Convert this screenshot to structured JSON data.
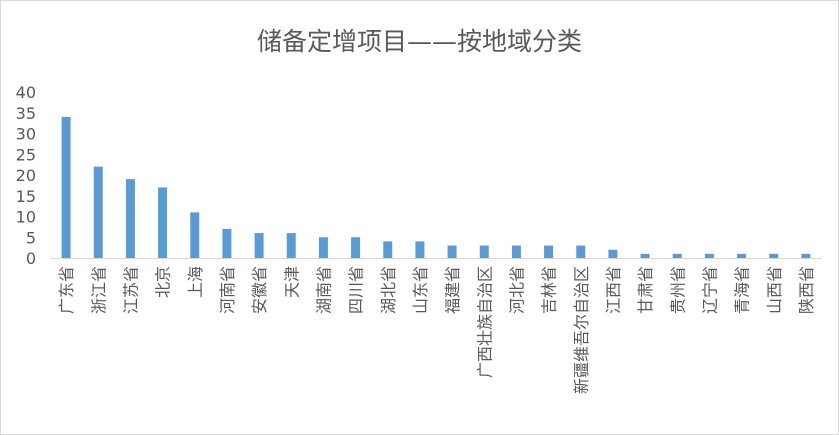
{
  "chart_data": {
    "type": "bar",
    "title": "储备定增项目——按地域分类",
    "xlabel": "",
    "ylabel": "",
    "ylim": [
      0,
      40
    ],
    "yticks": [
      0,
      5,
      10,
      15,
      20,
      25,
      30,
      35,
      40
    ],
    "grid": false,
    "legend": "none",
    "bar_color": "#5b9bd5",
    "categories": [
      "广东省",
      "浙江省",
      "江苏省",
      "北京",
      "上海",
      "河南省",
      "安徽省",
      "天津",
      "湖南省",
      "四川省",
      "湖北省",
      "山东省",
      "福建省",
      "广西壮族自治区",
      "河北省",
      "吉林省",
      "新疆维吾尔自治区",
      "江西省",
      "甘肃省",
      "贵州省",
      "辽宁省",
      "青海省",
      "山西省",
      "陕西省"
    ],
    "values": [
      34,
      22,
      19,
      17,
      11,
      7,
      6,
      6,
      5,
      5,
      4,
      4,
      3,
      3,
      3,
      3,
      3,
      2,
      1,
      1,
      1,
      1,
      1,
      1
    ]
  }
}
